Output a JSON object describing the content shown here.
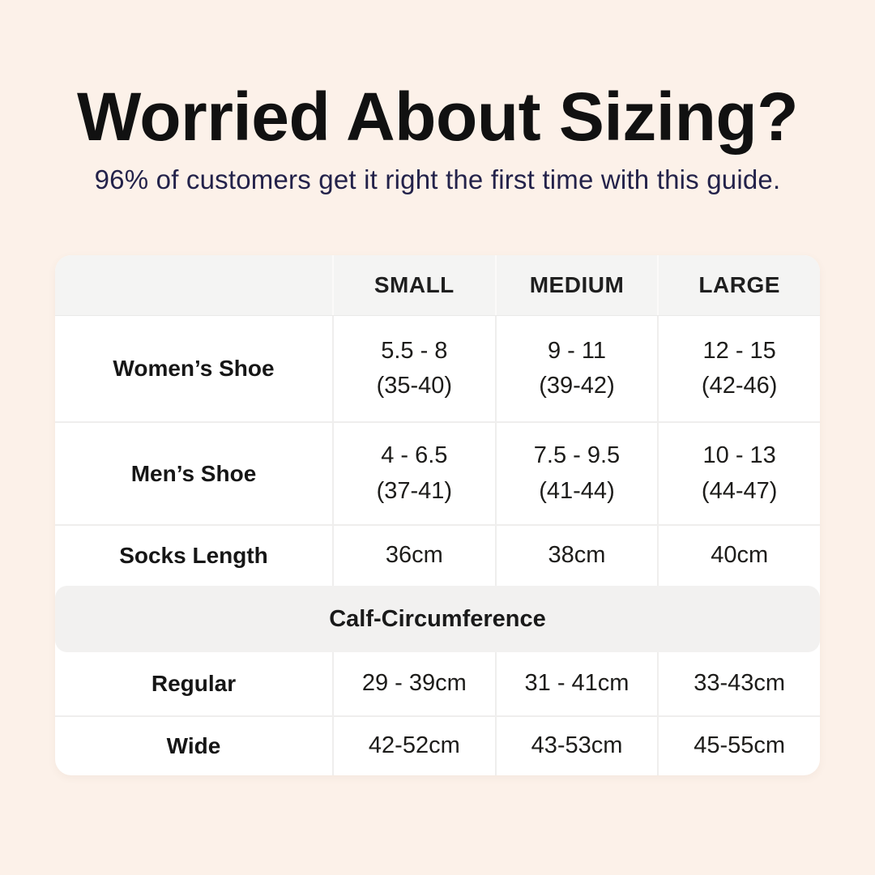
{
  "page": {
    "title": "Worried About Sizing?",
    "subtitle": "96% of customers get it right the first time with this guide."
  },
  "colors": {
    "background": "#FCF1E9",
    "title_text": "#111111",
    "subtitle_text": "#23224A",
    "table_background": "#FFFFFF",
    "header_band": "#F4F4F3",
    "section_band": "#F2F1F0",
    "table_text": "#1D1C1A"
  },
  "table": {
    "columns": [
      "",
      "SMALL",
      "MEDIUM",
      "LARGE"
    ],
    "rows": [
      {
        "label": "Women’s Shoe",
        "values": [
          "5.5 - 8\n(35-40)",
          "9 - 11\n(39-42)",
          "12 - 15\n(42-46)"
        ]
      },
      {
        "label": "Men’s Shoe",
        "values": [
          "4 - 6.5\n(37-41)",
          "7.5 - 9.5\n(41-44)",
          "10 - 13\n(44-47)"
        ]
      },
      {
        "label": "Socks Length",
        "values": [
          "36cm",
          "38cm",
          "40cm"
        ]
      }
    ],
    "calf": {
      "title": "Calf-Circumference",
      "rows": [
        {
          "label": "Regular",
          "values": [
            "29 - 39cm",
            "31 - 41cm",
            "33-43cm"
          ]
        },
        {
          "label": "Wide",
          "values": [
            "42-52cm",
            "43-53cm",
            "45-55cm"
          ]
        }
      ]
    }
  },
  "chart_data": {
    "type": "table",
    "title": "Worried About Sizing?",
    "subtitle": "96% of customers get it right the first time with this guide.",
    "columns": [
      "",
      "SMALL",
      "MEDIUM",
      "LARGE"
    ],
    "rows": [
      [
        "Women’s Shoe",
        "5.5 - 8 (35-40)",
        "9 - 11 (39-42)",
        "12 - 15 (42-46)"
      ],
      [
        "Men’s Shoe",
        "4 - 6.5 (37-41)",
        "7.5 - 9.5 (41-44)",
        "10 - 13 (44-47)"
      ],
      [
        "Socks Length",
        "36cm",
        "38cm",
        "40cm"
      ],
      [
        "Calf-Circumference (section header)",
        "",
        "",
        ""
      ],
      [
        "Regular",
        "29 - 39cm",
        "31 - 41cm",
        "33-43cm"
      ],
      [
        "Wide",
        "42-52cm",
        "43-53cm",
        "45-55cm"
      ]
    ],
    "layout": {
      "section_header_row_index": 3,
      "first_column_is_row_label": true,
      "grid": "light-gray dividers, white cells, gray header band"
    }
  }
}
